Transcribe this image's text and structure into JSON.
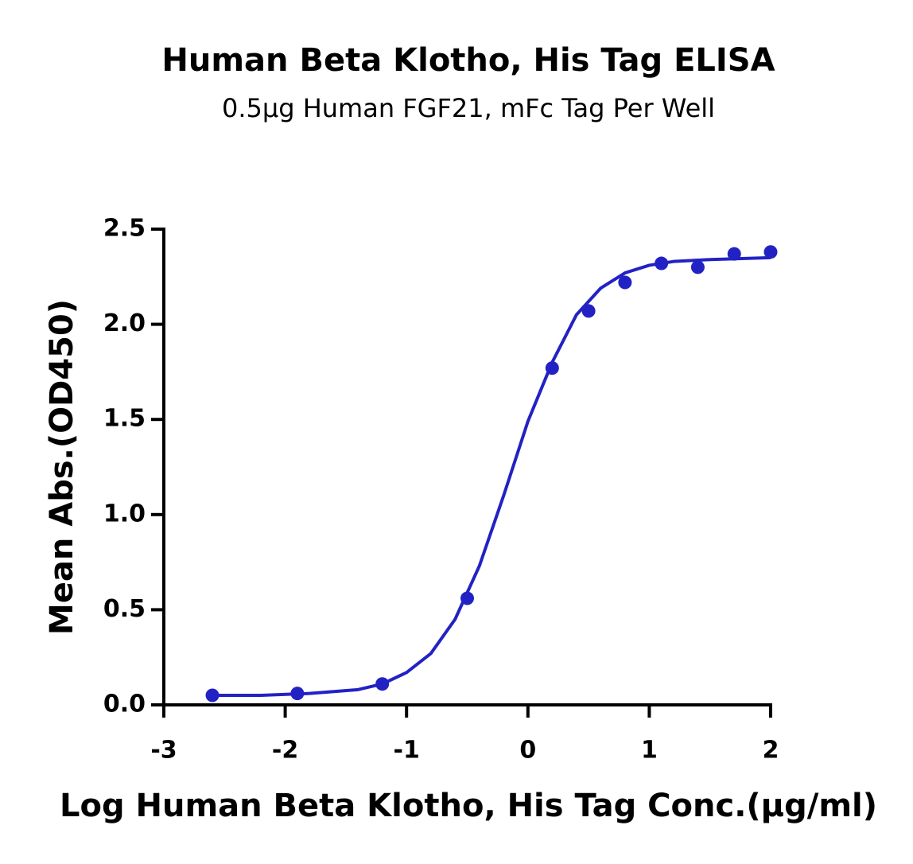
{
  "chart_data": {
    "type": "scatter",
    "title": "Human Beta Klotho, His Tag ELISA",
    "subtitle": "0.5μg Human FGF21, mFc Tag Per Well",
    "x_label": "Log Human Beta Klotho, His Tag Conc.(μg/ml)",
    "y_label": "Mean Abs.(OD450)",
    "xlim": [
      -3,
      2
    ],
    "xticks": [
      -3,
      -2,
      -1,
      0,
      1,
      2
    ],
    "ylim": [
      0,
      2.5
    ],
    "yticks": [
      {
        "value": 0,
        "label": "0.0"
      },
      {
        "value": 0.5,
        "label": "0.5"
      },
      {
        "value": 1,
        "label": "1.0"
      },
      {
        "value": 1.5,
        "label": "1.5"
      },
      {
        "value": 2,
        "label": "2.0"
      },
      {
        "value": 2.5,
        "label": "2.5"
      }
    ],
    "series": [
      {
        "mode": "markers",
        "color": "#2222c4",
        "x": [
          -2.6,
          -1.9,
          -1.2,
          -0.5,
          0.2,
          0.5,
          0.8,
          1.1,
          1.4,
          1.7,
          2.0
        ],
        "values": [
          0.05,
          0.06,
          0.11,
          0.56,
          1.77,
          2.07,
          2.22,
          2.32,
          2.3,
          2.37,
          2.38
        ]
      },
      {
        "mode": "line",
        "color": "#2222c4",
        "x": [
          -2.6,
          -2.2,
          -1.8,
          -1.4,
          -1.2,
          -1.0,
          -0.8,
          -0.6,
          -0.4,
          -0.2,
          0,
          0.2,
          0.4,
          0.6,
          0.8,
          1.0,
          1.2,
          1.5,
          2.0
        ],
        "values": [
          0.05,
          0.05,
          0.06,
          0.08,
          0.11,
          0.17,
          0.27,
          0.45,
          0.73,
          1.1,
          1.49,
          1.8,
          2.05,
          2.19,
          2.27,
          2.31,
          2.33,
          2.34,
          2.35
        ]
      }
    ]
  }
}
